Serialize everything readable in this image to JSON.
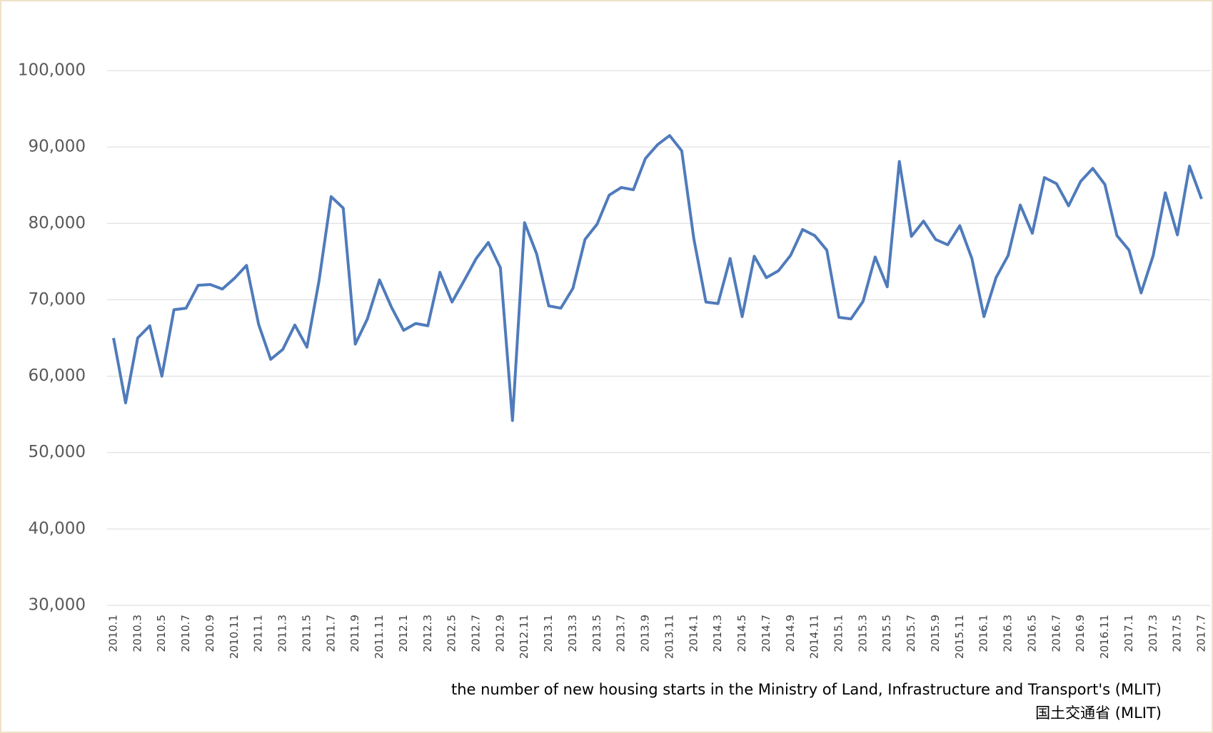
{
  "chart_data": {
    "type": "line",
    "categories": [
      "2010.1",
      null,
      "2010.3",
      null,
      "2010.5",
      null,
      "2010.7",
      null,
      "2010.9",
      null,
      "2010.11",
      null,
      "2011.1",
      null,
      "2011.3",
      null,
      "2011.5",
      null,
      "2011.7",
      null,
      "2011.9",
      null,
      "2011.11",
      null,
      "2012.1",
      null,
      "2012.3",
      null,
      "2012.5",
      null,
      "2012.7",
      null,
      "2012.9",
      null,
      "2012.11",
      null,
      "2013.1",
      null,
      "2013.3",
      null,
      "2013.5",
      null,
      "2013.7",
      null,
      "2013.9",
      null,
      "2013.11",
      null,
      "2014.1",
      null,
      "2014.3",
      null,
      "2014.5",
      null,
      "2014.7",
      null,
      "2014.9",
      null,
      "2014.11",
      null,
      "2015.1",
      null,
      "2015.3",
      null,
      "2015.5",
      null,
      "2015.7",
      null,
      "2015.9",
      null,
      "2015.11",
      null,
      "2016.1",
      null,
      "2016.3",
      null,
      "2016.5",
      null,
      "2016.7",
      null,
      "2016.9",
      null,
      "2016.11",
      null,
      "2017.1",
      null,
      "2017.3",
      null,
      "2017.5",
      null,
      "2017.7"
    ],
    "series": [
      {
        "color": "#4f7bbb",
        "values": [
          65000,
          56500,
          65000,
          66600,
          60000,
          68700,
          68900,
          71900,
          72000,
          71400,
          72800,
          74500,
          66800,
          62200,
          63500,
          66700,
          63800,
          72500,
          83500,
          82000,
          64200,
          67500,
          72600,
          69000,
          66000,
          66900,
          66600,
          73600,
          69700,
          72500,
          75400,
          77500,
          74200,
          54200,
          80100,
          76000,
          69200,
          68900,
          71500,
          77900,
          79900,
          83700,
          84700,
          84400,
          88500,
          90300,
          91500,
          89500,
          78000,
          69700,
          69500,
          75400,
          67800,
          75700,
          72900,
          73800,
          75800,
          79200,
          78400,
          76500,
          67700,
          67500,
          69800,
          75600,
          71700,
          88100,
          78300,
          80300,
          77900,
          77200,
          79700,
          75400,
          67800,
          72900,
          75800,
          82400,
          78700,
          86000,
          85200,
          82300,
          85500,
          87200,
          85100,
          78400,
          76500,
          70900,
          75800,
          84000,
          78500,
          87500,
          83200
        ]
      }
    ],
    "ylim": [
      30000,
      100000
    ],
    "yticks": [
      {
        "value": 30000,
        "label": "30,000"
      },
      {
        "value": 40000,
        "label": "40,000"
      },
      {
        "value": 50000,
        "label": "50,000"
      },
      {
        "value": 60000,
        "label": "60,000"
      },
      {
        "value": 70000,
        "label": "70,000"
      },
      {
        "value": 80000,
        "label": "80,000"
      },
      {
        "value": 90000,
        "label": "90,000"
      },
      {
        "value": 100000,
        "label": "100,000"
      }
    ],
    "grid": true,
    "annotations": [
      "the number of new housing starts in the Ministry of Land, Infrastructure and Transport's (MLIT)",
      "国土交通省 (MLIT)"
    ]
  }
}
